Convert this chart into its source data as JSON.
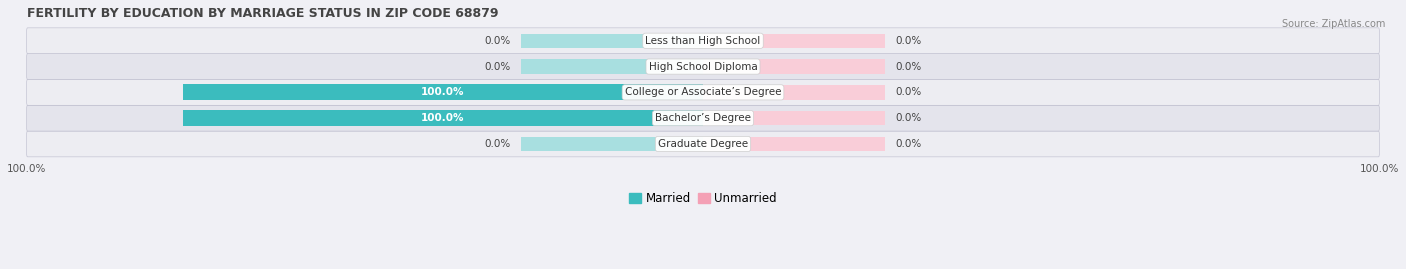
{
  "title": "FERTILITY BY EDUCATION BY MARRIAGE STATUS IN ZIP CODE 68879",
  "source": "Source: ZipAtlas.com",
  "categories": [
    "Less than High School",
    "High School Diploma",
    "College or Associate’s Degree",
    "Bachelor’s Degree",
    "Graduate Degree"
  ],
  "married": [
    0.0,
    0.0,
    100.0,
    100.0,
    0.0
  ],
  "unmarried": [
    0.0,
    0.0,
    0.0,
    0.0,
    0.0
  ],
  "married_color": "#3bbcbe",
  "unmarried_color": "#f4a0b5",
  "married_bg_color": "#a8dfe0",
  "unmarried_bg_color": "#f9cdd8",
  "row_bg_even": "#ededf2",
  "row_bg_odd": "#e4e4ec",
  "title_color": "#444444",
  "text_color": "#444444",
  "legend_married": "Married",
  "legend_unmarried": "Unmarried",
  "fig_width": 14.06,
  "fig_height": 2.69,
  "bg_color": "#f0f0f5"
}
